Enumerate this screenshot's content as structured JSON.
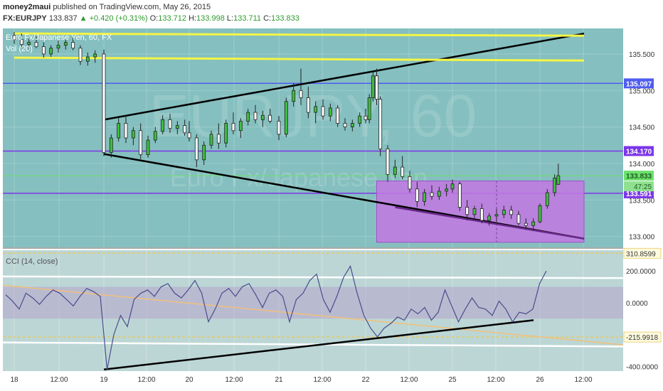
{
  "header": {
    "author": "money2maui",
    "published_text": "published on TradingView.com, May 26, 2015",
    "symbol": "FX:EURJPY",
    "last_price": "133.837",
    "change": "+0.420 (+0.31%)",
    "ohlc": {
      "open_label": "O:",
      "open": "133.712",
      "high_label": "H:",
      "high": "133.998",
      "low_label": "L:",
      "low": "133.711",
      "close_label": "C:",
      "close": "133.833"
    }
  },
  "legend": {
    "main": "Euro Fx/Japanese Yen, 60, FX",
    "volume": "Vol (20)",
    "cci": "CCI (14, close)"
  },
  "watermark": {
    "line1": "EURJPY, 60",
    "line2": "Euro Fx/Japanese Yen"
  },
  "colors": {
    "background": "#85bfbf",
    "cci_background": "#bcd6d5",
    "axis_background": "#ffffff",
    "candle_up": "#3fbf3f",
    "candle_down": "#ffffff",
    "yellow_line": "#f5f545",
    "blue_line": "#4f5cf0",
    "purple_line": "#7c36e8",
    "green_line": "#6de16d",
    "box_fill": "#c277e2",
    "cci_line": "#4a4c8c",
    "cci_band": "#b498c9",
    "orange_trend": "#f2c07a"
  },
  "chart_data": [
    {
      "type": "candlestick",
      "title": "Euro Fx/Japanese Yen, 60, FX",
      "x_ticks": [
        "18",
        "12:00",
        "19",
        "12:00",
        "20",
        "12:00",
        "21",
        "12:00",
        "22",
        "12:00",
        "25",
        "12:00",
        "26",
        "12:00"
      ],
      "y_ticks": [
        133.0,
        133.5,
        134.0,
        134.5,
        135.0,
        135.5
      ],
      "ylim": [
        132.85,
        135.85
      ],
      "horizontal_levels": [
        {
          "value": 135.097,
          "label": "135.097",
          "color": "#4f5cf0"
        },
        {
          "value": 134.17,
          "label": "134.170",
          "color": "#7c36e8"
        },
        {
          "value": 133.833,
          "label": "133.833",
          "color": "#6de16d"
        },
        {
          "value": 133.591,
          "label": "133.591",
          "color": "#7c36e8"
        }
      ],
      "countdown_label": "47:25",
      "trendlines": [
        {
          "from": [
            "19",
            134.6
          ],
          "to": [
            "26 12:00",
            135.78
          ],
          "color": "#000000"
        },
        {
          "from": [
            "19",
            134.13
          ],
          "to": [
            "26 12:00",
            132.97
          ],
          "color": "#000000"
        },
        {
          "from": [
            "18",
            135.78
          ],
          "to": [
            "26 12:00",
            135.75
          ],
          "color": "#f5f545"
        },
        {
          "from": [
            "18",
            135.45
          ],
          "to": [
            "26 12:00",
            135.41
          ],
          "color": "#f5f545"
        }
      ],
      "rectangle": {
        "from": "22 03:00",
        "to": "26 12:00",
        "top": 133.76,
        "bottom": 132.92
      },
      "candles": [
        {
          "t": "18 00:00",
          "o": 135.75,
          "h": 135.8,
          "l": 135.64,
          "c": 135.7
        },
        {
          "t": "18 02:00",
          "o": 135.7,
          "h": 135.78,
          "l": 135.6,
          "c": 135.63
        },
        {
          "t": "18 04:00",
          "o": 135.63,
          "h": 135.71,
          "l": 135.55,
          "c": 135.66
        },
        {
          "t": "18 06:00",
          "o": 135.66,
          "h": 135.74,
          "l": 135.58,
          "c": 135.6
        },
        {
          "t": "18 08:00",
          "o": 135.6,
          "h": 135.66,
          "l": 135.45,
          "c": 135.5
        },
        {
          "t": "18 10:00",
          "o": 135.5,
          "h": 135.62,
          "l": 135.46,
          "c": 135.58
        },
        {
          "t": "18 12:00",
          "o": 135.58,
          "h": 135.68,
          "l": 135.52,
          "c": 135.62
        },
        {
          "t": "18 14:00",
          "o": 135.62,
          "h": 135.7,
          "l": 135.56,
          "c": 135.66
        },
        {
          "t": "18 16:00",
          "o": 135.66,
          "h": 135.72,
          "l": 135.55,
          "c": 135.58
        },
        {
          "t": "18 18:00",
          "o": 135.58,
          "h": 135.62,
          "l": 135.35,
          "c": 135.4
        },
        {
          "t": "18 20:00",
          "o": 135.4,
          "h": 135.52,
          "l": 135.34,
          "c": 135.46
        },
        {
          "t": "18 22:00",
          "o": 135.46,
          "h": 135.55,
          "l": 135.38,
          "c": 135.5
        },
        {
          "t": "19 00:00",
          "o": 135.5,
          "h": 135.56,
          "l": 134.1,
          "c": 134.15
        },
        {
          "t": "19 02:00",
          "o": 134.15,
          "h": 134.4,
          "l": 134.08,
          "c": 134.35
        },
        {
          "t": "19 04:00",
          "o": 134.35,
          "h": 134.62,
          "l": 134.3,
          "c": 134.55
        },
        {
          "t": "19 06:00",
          "o": 134.55,
          "h": 134.66,
          "l": 134.28,
          "c": 134.35
        },
        {
          "t": "19 08:00",
          "o": 134.35,
          "h": 134.5,
          "l": 134.25,
          "c": 134.45
        },
        {
          "t": "19 10:00",
          "o": 134.45,
          "h": 134.55,
          "l": 134.06,
          "c": 134.12
        },
        {
          "t": "19 12:00",
          "o": 134.12,
          "h": 134.38,
          "l": 134.08,
          "c": 134.32
        },
        {
          "t": "19 14:00",
          "o": 134.32,
          "h": 134.5,
          "l": 134.28,
          "c": 134.44
        },
        {
          "t": "19 16:00",
          "o": 134.44,
          "h": 134.66,
          "l": 134.4,
          "c": 134.6
        },
        {
          "t": "19 18:00",
          "o": 134.6,
          "h": 134.68,
          "l": 134.42,
          "c": 134.48
        },
        {
          "t": "19 20:00",
          "o": 134.48,
          "h": 134.58,
          "l": 134.4,
          "c": 134.52
        },
        {
          "t": "19 22:00",
          "o": 134.52,
          "h": 134.6,
          "l": 134.38,
          "c": 134.42
        },
        {
          "t": "20 00:00",
          "o": 134.42,
          "h": 134.58,
          "l": 134.3,
          "c": 134.35
        },
        {
          "t": "20 02:00",
          "o": 134.35,
          "h": 134.4,
          "l": 133.95,
          "c": 134.05
        },
        {
          "t": "20 04:00",
          "o": 134.05,
          "h": 134.3,
          "l": 133.98,
          "c": 134.25
        },
        {
          "t": "20 06:00",
          "o": 134.25,
          "h": 134.45,
          "l": 134.2,
          "c": 134.4
        },
        {
          "t": "20 08:00",
          "o": 134.4,
          "h": 134.55,
          "l": 134.2,
          "c": 134.28
        },
        {
          "t": "20 10:00",
          "o": 134.28,
          "h": 134.6,
          "l": 134.22,
          "c": 134.55
        },
        {
          "t": "20 12:00",
          "o": 134.55,
          "h": 134.7,
          "l": 134.4,
          "c": 134.45
        },
        {
          "t": "20 14:00",
          "o": 134.45,
          "h": 134.62,
          "l": 134.35,
          "c": 134.58
        },
        {
          "t": "20 16:00",
          "o": 134.58,
          "h": 134.75,
          "l": 134.52,
          "c": 134.7
        },
        {
          "t": "20 18:00",
          "o": 134.7,
          "h": 134.8,
          "l": 134.55,
          "c": 134.6
        },
        {
          "t": "20 20:00",
          "o": 134.6,
          "h": 134.72,
          "l": 134.5,
          "c": 134.66
        },
        {
          "t": "20 22:00",
          "o": 134.66,
          "h": 134.75,
          "l": 134.55,
          "c": 134.58
        },
        {
          "t": "21 00:00",
          "o": 134.58,
          "h": 134.65,
          "l": 134.32,
          "c": 134.4
        },
        {
          "t": "21 02:00",
          "o": 134.4,
          "h": 134.9,
          "l": 134.36,
          "c": 134.85
        },
        {
          "t": "21 04:00",
          "o": 134.85,
          "h": 135.1,
          "l": 134.78,
          "c": 135.0
        },
        {
          "t": "21 06:00",
          "o": 135.0,
          "h": 135.3,
          "l": 134.8,
          "c": 134.9
        },
        {
          "t": "21 08:00",
          "o": 134.9,
          "h": 135.05,
          "l": 134.62,
          "c": 134.7
        },
        {
          "t": "21 10:00",
          "o": 134.7,
          "h": 134.85,
          "l": 134.55,
          "c": 134.78
        },
        {
          "t": "21 12:00",
          "o": 134.78,
          "h": 134.88,
          "l": 134.6,
          "c": 134.65
        },
        {
          "t": "21 14:00",
          "o": 134.65,
          "h": 134.82,
          "l": 134.58,
          "c": 134.76
        },
        {
          "t": "21 16:00",
          "o": 134.76,
          "h": 134.8,
          "l": 134.5,
          "c": 134.55
        },
        {
          "t": "21 18:00",
          "o": 134.55,
          "h": 134.62,
          "l": 134.45,
          "c": 134.5
        },
        {
          "t": "21 20:00",
          "o": 134.5,
          "h": 134.6,
          "l": 134.44,
          "c": 134.55
        },
        {
          "t": "21 22:00",
          "o": 134.55,
          "h": 134.7,
          "l": 134.5,
          "c": 134.65
        },
        {
          "t": "22 00:00",
          "o": 134.65,
          "h": 134.75,
          "l": 134.55,
          "c": 134.6
        },
        {
          "t": "22 01:00",
          "o": 134.6,
          "h": 134.95,
          "l": 134.55,
          "c": 134.9
        },
        {
          "t": "22 02:00",
          "o": 134.9,
          "h": 135.25,
          "l": 134.85,
          "c": 135.2
        },
        {
          "t": "22 03:00",
          "o": 135.2,
          "h": 135.3,
          "l": 134.8,
          "c": 134.88
        },
        {
          "t": "22 04:00",
          "o": 134.88,
          "h": 134.92,
          "l": 134.1,
          "c": 134.2
        },
        {
          "t": "22 06:00",
          "o": 134.2,
          "h": 134.25,
          "l": 133.75,
          "c": 133.85
        },
        {
          "t": "22 08:00",
          "o": 133.85,
          "h": 134.05,
          "l": 133.8,
          "c": 133.95
        },
        {
          "t": "22 10:00",
          "o": 133.95,
          "h": 134.1,
          "l": 133.78,
          "c": 133.82
        },
        {
          "t": "22 12:00",
          "o": 133.82,
          "h": 133.9,
          "l": 133.6,
          "c": 133.65
        },
        {
          "t": "22 14:00",
          "o": 133.65,
          "h": 133.75,
          "l": 133.4,
          "c": 133.48
        },
        {
          "t": "22 16:00",
          "o": 133.48,
          "h": 133.65,
          "l": 133.42,
          "c": 133.6
        },
        {
          "t": "22 18:00",
          "o": 133.6,
          "h": 133.7,
          "l": 133.5,
          "c": 133.55
        },
        {
          "t": "22 20:00",
          "o": 133.55,
          "h": 133.68,
          "l": 133.5,
          "c": 133.62
        },
        {
          "t": "22 22:00",
          "o": 133.62,
          "h": 133.72,
          "l": 133.55,
          "c": 133.65
        },
        {
          "t": "25 00:00",
          "o": 133.65,
          "h": 133.78,
          "l": 133.6,
          "c": 133.72
        },
        {
          "t": "25 02:00",
          "o": 133.72,
          "h": 133.75,
          "l": 133.35,
          "c": 133.4
        },
        {
          "t": "25 04:00",
          "o": 133.4,
          "h": 133.5,
          "l": 133.22,
          "c": 133.3
        },
        {
          "t": "25 06:00",
          "o": 133.3,
          "h": 133.42,
          "l": 133.25,
          "c": 133.38
        },
        {
          "t": "25 08:00",
          "o": 133.38,
          "h": 133.45,
          "l": 133.18,
          "c": 133.22
        },
        {
          "t": "25 10:00",
          "o": 133.22,
          "h": 133.32,
          "l": 133.15,
          "c": 133.28
        },
        {
          "t": "25 12:00",
          "o": 133.28,
          "h": 133.38,
          "l": 133.2,
          "c": 133.3
        },
        {
          "t": "25 14:00",
          "o": 133.3,
          "h": 133.42,
          "l": 133.25,
          "c": 133.36
        },
        {
          "t": "25 16:00",
          "o": 133.36,
          "h": 133.42,
          "l": 133.24,
          "c": 133.3
        },
        {
          "t": "25 18:00",
          "o": 133.3,
          "h": 133.35,
          "l": 133.15,
          "c": 133.18
        },
        {
          "t": "25 20:00",
          "o": 133.18,
          "h": 133.25,
          "l": 133.1,
          "c": 133.15
        },
        {
          "t": "25 22:00",
          "o": 133.15,
          "h": 133.25,
          "l": 133.08,
          "c": 133.2
        },
        {
          "t": "26 00:00",
          "o": 133.2,
          "h": 133.45,
          "l": 133.18,
          "c": 133.42
        },
        {
          "t": "26 02:00",
          "o": 133.42,
          "h": 133.65,
          "l": 133.38,
          "c": 133.6
        },
        {
          "t": "26 04:00",
          "o": 133.6,
          "h": 133.85,
          "l": 133.55,
          "c": 133.8
        },
        {
          "t": "26 05:00",
          "o": 133.712,
          "h": 133.998,
          "l": 133.711,
          "c": 133.833
        }
      ]
    },
    {
      "type": "line",
      "title": "CCI (14, close)",
      "y_ticks": [
        200.0,
        0.0,
        -400.0
      ],
      "y_tick_labels": [
        "200.0000",
        "0.0000",
        "-400.0000"
      ],
      "ylim": [
        -430,
        330
      ],
      "levels": [
        {
          "value": 310.8599,
          "label": "310.8599"
        },
        {
          "value": -215.9918,
          "label": "-215.9918"
        }
      ],
      "series": [
        {
          "values": [
            50,
            10,
            -40,
            60,
            30,
            -10,
            40,
            80,
            60,
            20,
            -20,
            40,
            90,
            70,
            40,
            -420,
            -200,
            -80,
            -150,
            20,
            60,
            80,
            40,
            100,
            120,
            60,
            30,
            80,
            140,
            60,
            -120,
            -40,
            60,
            90,
            40,
            100,
            120,
            50,
            -30,
            60,
            80,
            40,
            -120,
            20,
            60,
            140,
            180,
            20,
            -60,
            40,
            160,
            230,
            60,
            -80,
            -160,
            -215,
            -160,
            -130,
            -90,
            -110,
            -40,
            -70,
            -30,
            -110,
            -60,
            80,
            -20,
            -120,
            -40,
            30,
            -30,
            -40,
            -80,
            10,
            -40,
            -120,
            -60,
            -70,
            -40,
            120,
            200
          ]
        }
      ]
    }
  ]
}
